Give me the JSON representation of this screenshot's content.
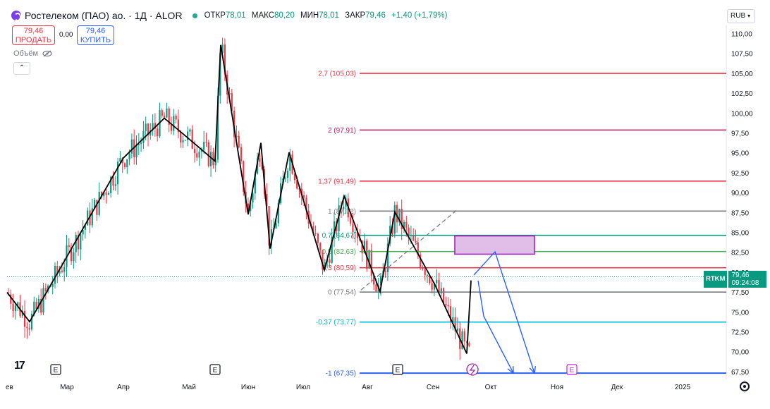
{
  "header": {
    "title": "Ростелеком (ПАО) ао. · 1Д · ALOR",
    "ohlc": [
      {
        "label": "ОТКР",
        "value": "78,01"
      },
      {
        "label": "МАКС",
        "value": "80,20"
      },
      {
        "label": "МИН",
        "value": "78,01"
      },
      {
        "label": "ЗАКР",
        "value": "79,46"
      }
    ],
    "change": "+1,40 (+1,79%)"
  },
  "trade": {
    "sell_price": "79,46",
    "sell_label": "ПРОДАТЬ",
    "spread": "0,00",
    "buy_price": "79,46",
    "buy_label": "КУПИТЬ"
  },
  "volume_label": "Объём",
  "currency": "RUB",
  "price_tag": {
    "symbol": "RTKM",
    "price": "79,46",
    "timer": "09:24:08"
  },
  "colors": {
    "up": "#089981",
    "down": "#f23645",
    "fib_red": "#f23645",
    "fib_crimson": "#c2185b",
    "fib_gray": "#787b86",
    "fib_green": "#089981",
    "fib_lime": "#4caf50",
    "fib_cyan": "#00bcd4",
    "fib_blue": "#2962ff",
    "zigzag": "#000000",
    "forecast_arrow": "#2962ff",
    "zone_fill": "#e1bee7",
    "zone_border": "#9c27b0",
    "current_price_line": "#089981"
  },
  "price_axis": {
    "labels": [
      "110,00",
      "107,50",
      "105,00",
      "102,50",
      "100,00",
      "97,50",
      "95,00",
      "92,50",
      "90,00",
      "87,50",
      "85,00",
      "82,50",
      "80,00",
      "77,50",
      "75,00",
      "72,50",
      "70,00",
      "67,50"
    ]
  },
  "time_axis": {
    "labels": [
      "ев",
      "Мар",
      "Апр",
      "Май",
      "Июн",
      "Июл",
      "Авг",
      "Сен",
      "Окт",
      "Ноя",
      "Дек",
      "2025"
    ]
  },
  "chart_data": {
    "type": "candlestick",
    "symbol": "RTKM",
    "interval": "1Д",
    "ylim": [
      66.5,
      111
    ],
    "last_close": 79.46,
    "fib_levels": [
      {
        "label": "2,7 (105,03)",
        "ratio": 2.7,
        "price": 105.03,
        "color": "fib_red"
      },
      {
        "label": "2 (97,91)",
        "ratio": 2,
        "price": 97.91,
        "color": "fib_crimson"
      },
      {
        "label": "1,37 (91,49)",
        "ratio": 1.37,
        "price": 91.49,
        "color": "fib_red"
      },
      {
        "label": "1 (87,72)",
        "ratio": 1,
        "price": 87.72,
        "color": "fib_gray"
      },
      {
        "label": "0,7 (84,67)",
        "ratio": 0.7,
        "price": 84.67,
        "color": "fib_green"
      },
      {
        "label": "0,5 (82,63)",
        "ratio": 0.5,
        "price": 82.63,
        "color": "fib_lime"
      },
      {
        "label": "0,3 (80,59)",
        "ratio": 0.3,
        "price": 80.59,
        "color": "fib_red"
      },
      {
        "label": "0 (77,54)",
        "ratio": 0,
        "price": 77.54,
        "color": "fib_gray"
      },
      {
        "label": "-0,37 (73,77)",
        "ratio": -0.37,
        "price": 73.77,
        "color": "fib_cyan"
      },
      {
        "label": "-1 (67,35)",
        "ratio": -1,
        "price": 67.35,
        "color": "fib_blue"
      }
    ],
    "zigzag_prices": [
      77.5,
      73.8,
      94.4,
      99.4,
      96.8,
      94.0,
      108.6,
      87.3,
      96.3,
      83.0,
      95.1,
      80.3,
      89.6,
      77.6,
      87.6,
      78.6,
      69.8,
      79.5
    ],
    "target_zone": {
      "top": 84.6,
      "bottom": 82.3
    },
    "forecast_targets": [
      67.35,
      67.35
    ],
    "earnings_markers": 4
  }
}
